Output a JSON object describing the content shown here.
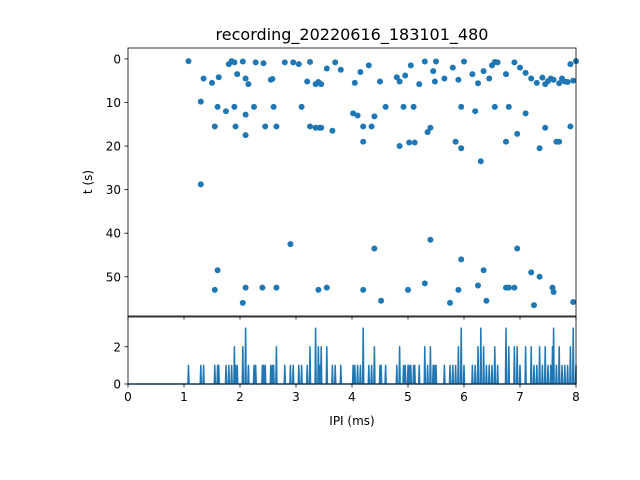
{
  "chart_data": [
    {
      "type": "scatter",
      "title": "recording_20220616_183101_480",
      "xlabel": "",
      "ylabel": "t (s)",
      "xlim": [
        0,
        8
      ],
      "ylim": [
        59,
        -2.5
      ],
      "y_inverted": true,
      "grid": false,
      "color": "#1f77b4",
      "yticks": [
        0,
        10,
        20,
        30,
        40,
        50
      ],
      "x_ticks_labeled": false,
      "points": [
        [
          1.08,
          0.5
        ],
        [
          1.35,
          4.5
        ],
        [
          1.5,
          5.5
        ],
        [
          1.62,
          4.2
        ],
        [
          1.8,
          1.2
        ],
        [
          1.85,
          0.5
        ],
        [
          1.9,
          0.8
        ],
        [
          1.95,
          3.5
        ],
        [
          2.05,
          0.6
        ],
        [
          2.1,
          4.5
        ],
        [
          2.15,
          5.8
        ],
        [
          2.28,
          0.8
        ],
        [
          2.42,
          1.0
        ],
        [
          2.55,
          4.8
        ],
        [
          2.58,
          4.6
        ],
        [
          2.8,
          0.8
        ],
        [
          2.95,
          0.8
        ],
        [
          3.05,
          1.2
        ],
        [
          3.2,
          5.2
        ],
        [
          3.25,
          0.7
        ],
        [
          3.35,
          5.8
        ],
        [
          3.4,
          5.3
        ],
        [
          3.45,
          5.8
        ],
        [
          3.55,
          2.2
        ],
        [
          3.7,
          0.8
        ],
        [
          3.8,
          2.5
        ],
        [
          4.05,
          5.5
        ],
        [
          4.15,
          3.0
        ],
        [
          4.3,
          1.5
        ],
        [
          4.5,
          5.2
        ],
        [
          4.8,
          4.2
        ],
        [
          4.85,
          5.2
        ],
        [
          4.95,
          3.8
        ],
        [
          5.05,
          1.5
        ],
        [
          5.2,
          5.8
        ],
        [
          5.3,
          0.6
        ],
        [
          5.45,
          2.8
        ],
        [
          5.48,
          5.2
        ],
        [
          5.5,
          0.6
        ],
        [
          5.65,
          4.5
        ],
        [
          5.8,
          2.0
        ],
        [
          5.9,
          4.8
        ],
        [
          6.0,
          0.6
        ],
        [
          6.15,
          3.5
        ],
        [
          6.25,
          5.6
        ],
        [
          6.35,
          2.8
        ],
        [
          6.45,
          4.5
        ],
        [
          6.5,
          1.5
        ],
        [
          6.55,
          0.7
        ],
        [
          6.6,
          0.8
        ],
        [
          6.75,
          3.5
        ],
        [
          6.9,
          0.8
        ],
        [
          7.0,
          2.0
        ],
        [
          7.1,
          3.2
        ],
        [
          7.2,
          4.5
        ],
        [
          7.3,
          5.5
        ],
        [
          7.4,
          4.3
        ],
        [
          7.45,
          5.8
        ],
        [
          7.5,
          5.1
        ],
        [
          7.55,
          4.5
        ],
        [
          7.6,
          4.8
        ],
        [
          7.7,
          5.6
        ],
        [
          7.75,
          4.5
        ],
        [
          7.8,
          5.2
        ],
        [
          7.85,
          5.3
        ],
        [
          7.9,
          1.2
        ],
        [
          7.95,
          5.0
        ],
        [
          8.0,
          0.5
        ],
        [
          1.3,
          9.8
        ],
        [
          1.6,
          11.0
        ],
        [
          1.75,
          12.0
        ],
        [
          1.9,
          11.0
        ],
        [
          2.1,
          12.8
        ],
        [
          2.25,
          11.0
        ],
        [
          2.6,
          11.0
        ],
        [
          3.1,
          11.0
        ],
        [
          4.02,
          12.5
        ],
        [
          4.1,
          13.0
        ],
        [
          4.4,
          13.2
        ],
        [
          4.6,
          11.0
        ],
        [
          4.92,
          11.0
        ],
        [
          5.1,
          11.0
        ],
        [
          5.95,
          11.0
        ],
        [
          6.2,
          12.0
        ],
        [
          6.55,
          11.0
        ],
        [
          6.8,
          11.0
        ],
        [
          7.1,
          12.5
        ],
        [
          1.55,
          15.5
        ],
        [
          1.92,
          15.5
        ],
        [
          2.1,
          17.5
        ],
        [
          2.45,
          15.5
        ],
        [
          2.65,
          15.5
        ],
        [
          3.25,
          15.5
        ],
        [
          3.35,
          15.8
        ],
        [
          3.42,
          15.8
        ],
        [
          3.45,
          15.8
        ],
        [
          3.65,
          16.5
        ],
        [
          4.2,
          15.5
        ],
        [
          4.2,
          19.0
        ],
        [
          4.35,
          15.5
        ],
        [
          4.85,
          20.0
        ],
        [
          5.02,
          19.2
        ],
        [
          5.12,
          19.2
        ],
        [
          5.35,
          16.8
        ],
        [
          5.4,
          15.8
        ],
        [
          5.85,
          19.0
        ],
        [
          5.95,
          20.5
        ],
        [
          6.3,
          23.5
        ],
        [
          6.75,
          19.0
        ],
        [
          6.95,
          17.2
        ],
        [
          7.35,
          20.5
        ],
        [
          7.45,
          15.8
        ],
        [
          7.65,
          19.0
        ],
        [
          7.7,
          19.0
        ],
        [
          7.9,
          15.5
        ],
        [
          1.3,
          28.8
        ],
        [
          2.9,
          42.5
        ],
        [
          4.4,
          43.5
        ],
        [
          5.4,
          41.5
        ],
        [
          5.95,
          46.0
        ],
        [
          6.95,
          43.5
        ],
        [
          1.6,
          48.5
        ],
        [
          1.55,
          53.0
        ],
        [
          2.05,
          56.0
        ],
        [
          2.1,
          52.5
        ],
        [
          2.4,
          52.5
        ],
        [
          2.65,
          52.5
        ],
        [
          3.4,
          53.0
        ],
        [
          3.55,
          52.5
        ],
        [
          4.2,
          53.0
        ],
        [
          4.52,
          55.5
        ],
        [
          5.0,
          53.0
        ],
        [
          5.3,
          51.5
        ],
        [
          5.75,
          56.0
        ],
        [
          5.9,
          53.0
        ],
        [
          6.25,
          52.0
        ],
        [
          6.35,
          48.5
        ],
        [
          6.4,
          55.5
        ],
        [
          6.75,
          52.5
        ],
        [
          6.8,
          52.5
        ],
        [
          6.9,
          52.5
        ],
        [
          7.2,
          49.0
        ],
        [
          7.25,
          56.5
        ],
        [
          7.35,
          50.0
        ],
        [
          7.58,
          52.5
        ],
        [
          7.6,
          53.5
        ],
        [
          7.95,
          55.8
        ]
      ]
    },
    {
      "type": "line",
      "title": "",
      "xlabel": "IPI (ms)",
      "ylabel": "",
      "xlim": [
        0,
        8
      ],
      "ylim": [
        0,
        3.6
      ],
      "grid": false,
      "color": "#1f77b4",
      "xticks": [
        0,
        1,
        2,
        3,
        4,
        5,
        6,
        7,
        8
      ],
      "yticks": [
        0,
        2
      ],
      "bin_width": 0.02,
      "spikes": [
        [
          1.08,
          1
        ],
        [
          1.3,
          1
        ],
        [
          1.35,
          1
        ],
        [
          1.55,
          1
        ],
        [
          1.6,
          1
        ],
        [
          1.62,
          1
        ],
        [
          1.75,
          1
        ],
        [
          1.8,
          1
        ],
        [
          1.85,
          1
        ],
        [
          1.9,
          2
        ],
        [
          1.92,
          1
        ],
        [
          1.95,
          1
        ],
        [
          2.05,
          2
        ],
        [
          2.1,
          3
        ],
        [
          2.15,
          1
        ],
        [
          2.25,
          1
        ],
        [
          2.28,
          1
        ],
        [
          2.4,
          1
        ],
        [
          2.42,
          1
        ],
        [
          2.45,
          1
        ],
        [
          2.55,
          1
        ],
        [
          2.58,
          1
        ],
        [
          2.6,
          1
        ],
        [
          2.65,
          2
        ],
        [
          2.8,
          1
        ],
        [
          2.9,
          1
        ],
        [
          2.95,
          1
        ],
        [
          3.05,
          1
        ],
        [
          3.1,
          1
        ],
        [
          3.2,
          1
        ],
        [
          3.25,
          2
        ],
        [
          3.35,
          3
        ],
        [
          3.4,
          2
        ],
        [
          3.42,
          1
        ],
        [
          3.45,
          2
        ],
        [
          3.55,
          2
        ],
        [
          3.65,
          1
        ],
        [
          3.7,
          1
        ],
        [
          3.8,
          1
        ],
        [
          4.02,
          1
        ],
        [
          4.05,
          1
        ],
        [
          4.1,
          1
        ],
        [
          4.15,
          1
        ],
        [
          4.2,
          3
        ],
        [
          4.3,
          1
        ],
        [
          4.35,
          1
        ],
        [
          4.4,
          2
        ],
        [
          4.5,
          1
        ],
        [
          4.52,
          1
        ],
        [
          4.6,
          1
        ],
        [
          4.8,
          1
        ],
        [
          4.85,
          2
        ],
        [
          4.92,
          1
        ],
        [
          4.95,
          1
        ],
        [
          5.0,
          1
        ],
        [
          5.02,
          1
        ],
        [
          5.05,
          1
        ],
        [
          5.1,
          1
        ],
        [
          5.12,
          1
        ],
        [
          5.2,
          1
        ],
        [
          5.3,
          2
        ],
        [
          5.35,
          1
        ],
        [
          5.4,
          2
        ],
        [
          5.45,
          1
        ],
        [
          5.48,
          1
        ],
        [
          5.5,
          1
        ],
        [
          5.65,
          1
        ],
        [
          5.75,
          1
        ],
        [
          5.8,
          1
        ],
        [
          5.85,
          1
        ],
        [
          5.9,
          2
        ],
        [
          5.95,
          3
        ],
        [
          6.0,
          1
        ],
        [
          6.15,
          1
        ],
        [
          6.2,
          1
        ],
        [
          6.25,
          2
        ],
        [
          6.3,
          3
        ],
        [
          6.35,
          2
        ],
        [
          6.4,
          1
        ],
        [
          6.45,
          1
        ],
        [
          6.5,
          1
        ],
        [
          6.55,
          2
        ],
        [
          6.6,
          1
        ],
        [
          6.75,
          3
        ],
        [
          6.8,
          2
        ],
        [
          6.9,
          2
        ],
        [
          6.95,
          2
        ],
        [
          7.0,
          1
        ],
        [
          7.1,
          2
        ],
        [
          7.2,
          2
        ],
        [
          7.25,
          1
        ],
        [
          7.3,
          1
        ],
        [
          7.35,
          2
        ],
        [
          7.4,
          1
        ],
        [
          7.45,
          2
        ],
        [
          7.5,
          1
        ],
        [
          7.55,
          1
        ],
        [
          7.58,
          2
        ],
        [
          7.6,
          3
        ],
        [
          7.65,
          1
        ],
        [
          7.7,
          2
        ],
        [
          7.75,
          1
        ],
        [
          7.8,
          1
        ],
        [
          7.85,
          1
        ],
        [
          7.9,
          2
        ],
        [
          7.95,
          3
        ],
        [
          8.0,
          1
        ]
      ]
    }
  ]
}
